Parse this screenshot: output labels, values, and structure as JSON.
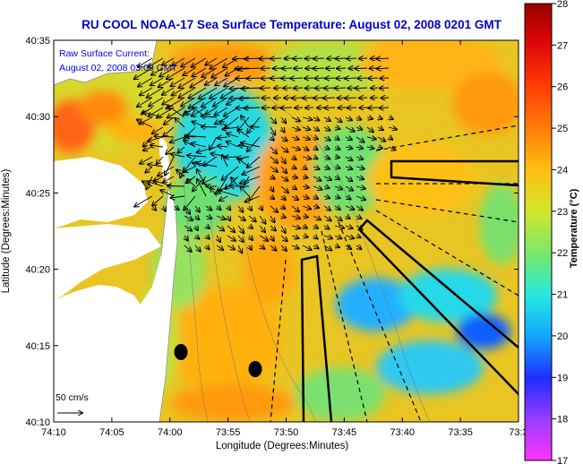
{
  "title": "RU COOL  NOAA-17  Sea Surface Temperature:  August 02, 2008 0201 GMT",
  "legend": {
    "current_label": "Raw Surface Current:",
    "current_time": "August 02, 2008 03:00 GMT",
    "scale_label": "50 cm/s"
  },
  "axes": {
    "x_title": "Longitude (Degrees:Minutes)",
    "y_title": "Latitude (Degrees:Minutes)",
    "x_ticks": [
      "74:10",
      "74:05",
      "74:00",
      "73:55",
      "73:50",
      "73:45",
      "73:40",
      "73:35",
      "73:3"
    ],
    "y_ticks": [
      "40:35",
      "40:30",
      "40:25",
      "40:20",
      "40:15",
      "40:10"
    ]
  },
  "colorbar": {
    "title": "Temperature (°C)",
    "ticks": [
      "28",
      "27",
      "26",
      "25",
      "24",
      "23",
      "22",
      "21",
      "20",
      "19",
      "18",
      "17"
    ],
    "range": [
      17,
      28
    ]
  },
  "colors": {
    "title": "#0000cc",
    "legend_text": "#0000ee",
    "land": "#ffffff",
    "water_base": "#f2c21c"
  }
}
